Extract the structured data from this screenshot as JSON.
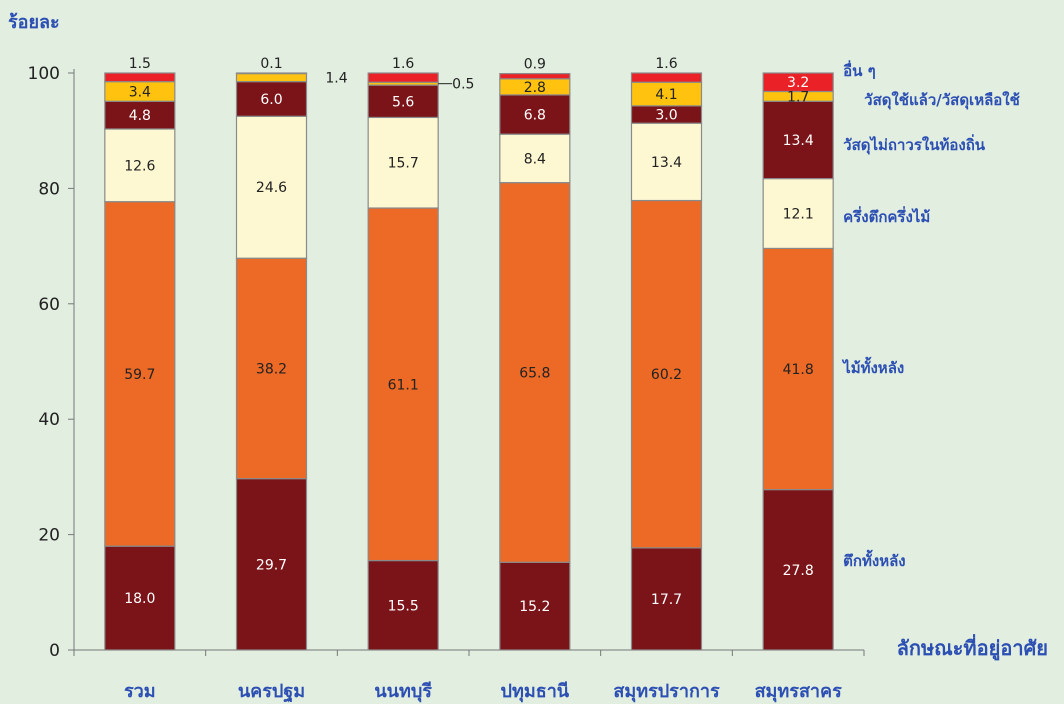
{
  "chart_data": {
    "type": "bar",
    "stacked": true,
    "ylabel": "ร้อยละ",
    "xlabel": "ลักษณะที่อยู่อาศัย",
    "ylim": [
      0,
      100
    ],
    "yticks": [
      0,
      20,
      40,
      60,
      80,
      100
    ],
    "categories": [
      "รวม",
      "นครปฐม",
      "นนทบุรี",
      "ปทุมธานี",
      "สมุทรปราการ",
      "สมุทรสาคร"
    ],
    "series": [
      {
        "name": "ตึกทั้งหลัง",
        "color": "#7b1418",
        "values": [
          18.0,
          29.7,
          15.5,
          15.2,
          17.7,
          27.8
        ]
      },
      {
        "name": "ไม้ทั้งหลัง",
        "color": "#ec6a25",
        "values": [
          59.7,
          38.2,
          61.1,
          65.8,
          60.2,
          41.8
        ]
      },
      {
        "name": "ครึ่งตึกครึ่งไม้",
        "color": "#fdf8d2",
        "values": [
          12.6,
          24.6,
          15.7,
          8.4,
          13.4,
          12.1
        ]
      },
      {
        "name": "วัสดุไม่ถาวรในท้องถิ่น",
        "color": "#7b1418",
        "values": [
          4.8,
          6.0,
          5.6,
          6.8,
          3.0,
          13.4
        ]
      },
      {
        "name": "วัสดุใช้แล้ว/วัสดุเหลือใช้",
        "color": "#ffc20e",
        "values": [
          3.4,
          1.4,
          0.5,
          2.8,
          4.1,
          1.7
        ]
      },
      {
        "name": "อื่น ๆ",
        "color": "#ea2126",
        "values": [
          1.5,
          0.1,
          1.6,
          0.9,
          1.6,
          3.2
        ]
      }
    ],
    "label_colors": {
      "dark": "#ffffff",
      "light": "#222222"
    },
    "accent_color": "#2c4fb3",
    "grid": false,
    "legend": "right"
  }
}
